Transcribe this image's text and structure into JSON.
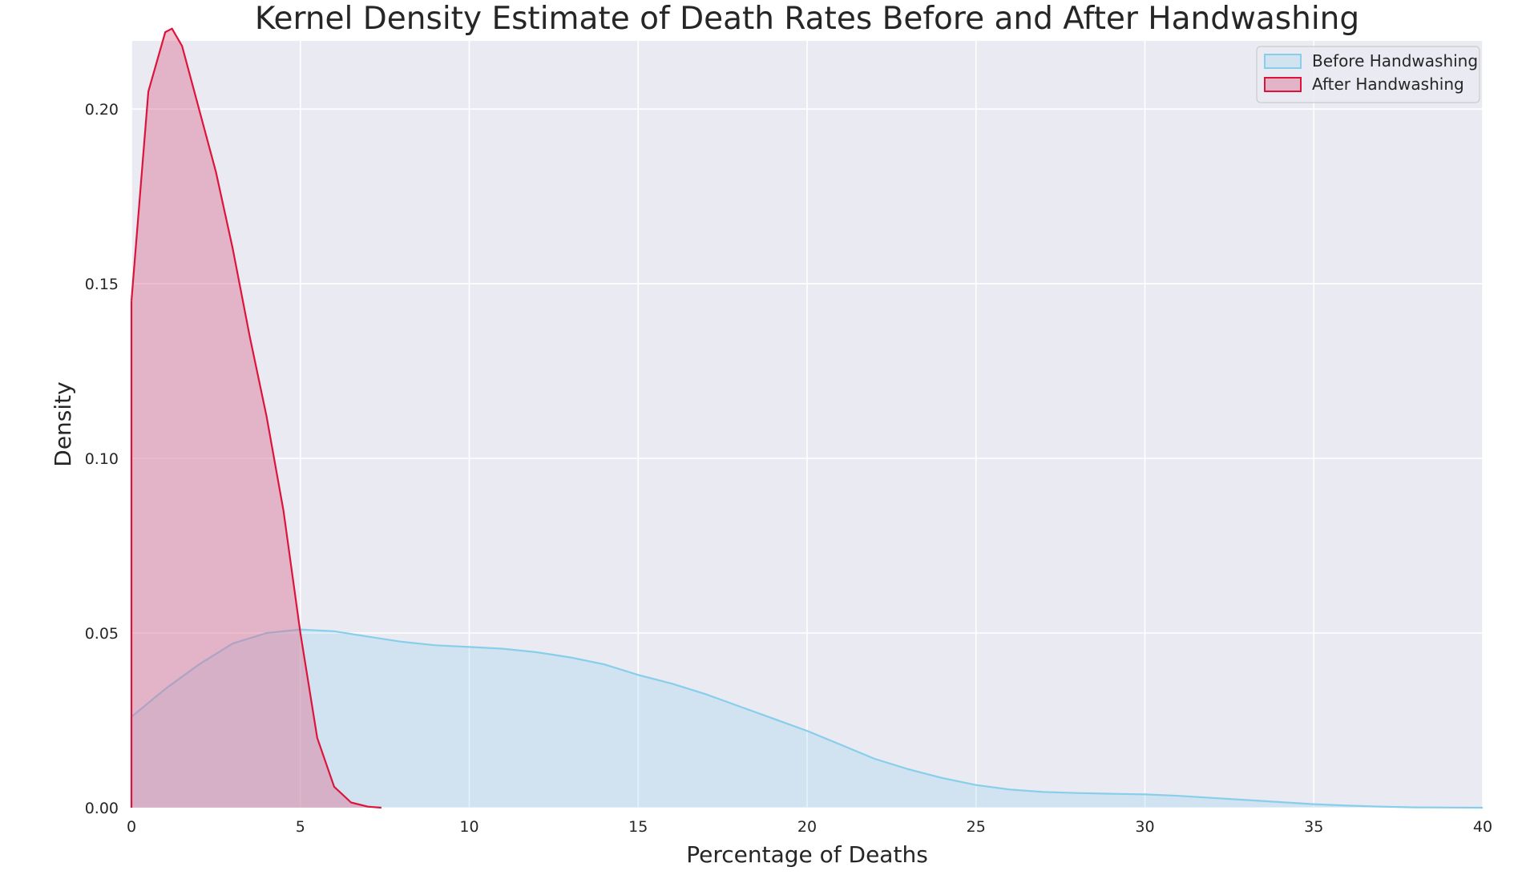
{
  "chart_data": {
    "type": "area",
    "title": "Kernel Density Estimate of Death Rates Before and After Handwashing",
    "xlabel": "Percentage of Deaths",
    "ylabel": "Density",
    "xlim": [
      0,
      40
    ],
    "ylim": [
      0,
      0.2195
    ],
    "x_ticks": [
      "0",
      "5",
      "10",
      "15",
      "20",
      "25",
      "30",
      "35",
      "40"
    ],
    "y_ticks": [
      "0.00",
      "0.05",
      "0.10",
      "0.15",
      "0.20"
    ],
    "grid": true,
    "legend_position": "top-right",
    "series": [
      {
        "name": "Before Handwashing",
        "line_color": "#87ceeb",
        "fill_color": "#87ceeb",
        "fill_opacity": 0.25,
        "x": [
          0,
          1,
          2,
          3,
          4,
          5,
          6,
          7,
          8,
          9,
          10,
          11,
          12,
          13,
          14,
          15,
          16,
          17,
          18,
          19,
          20,
          21,
          22,
          23,
          24,
          25,
          26,
          27,
          28,
          29,
          30,
          31,
          32,
          33,
          34,
          35,
          36,
          37,
          38,
          39,
          40
        ],
        "y": [
          0.026,
          0.034,
          0.041,
          0.047,
          0.05,
          0.051,
          0.0505,
          0.049,
          0.0475,
          0.0465,
          0.046,
          0.0455,
          0.0445,
          0.043,
          0.041,
          0.038,
          0.0355,
          0.0325,
          0.029,
          0.0255,
          0.022,
          0.018,
          0.014,
          0.011,
          0.0085,
          0.0065,
          0.0052,
          0.0045,
          0.0042,
          0.004,
          0.0038,
          0.0034,
          0.0028,
          0.0022,
          0.0016,
          0.001,
          0.0006,
          0.0003,
          0.0001,
          5e-05,
          0.0
        ]
      },
      {
        "name": "After Handwashing",
        "line_color": "#dc143c",
        "fill_color": "#db7093",
        "fill_opacity": 0.45,
        "x": [
          0,
          0.5,
          1.0,
          1.2,
          1.5,
          2.0,
          2.5,
          3.0,
          3.5,
          4.0,
          4.5,
          5.0,
          5.5,
          6.0,
          6.5,
          7.0,
          7.4
        ],
        "y": [
          0.145,
          0.205,
          0.222,
          0.223,
          0.218,
          0.2,
          0.182,
          0.16,
          0.135,
          0.112,
          0.085,
          0.05,
          0.02,
          0.006,
          0.0015,
          0.0003,
          0.0
        ]
      }
    ]
  }
}
